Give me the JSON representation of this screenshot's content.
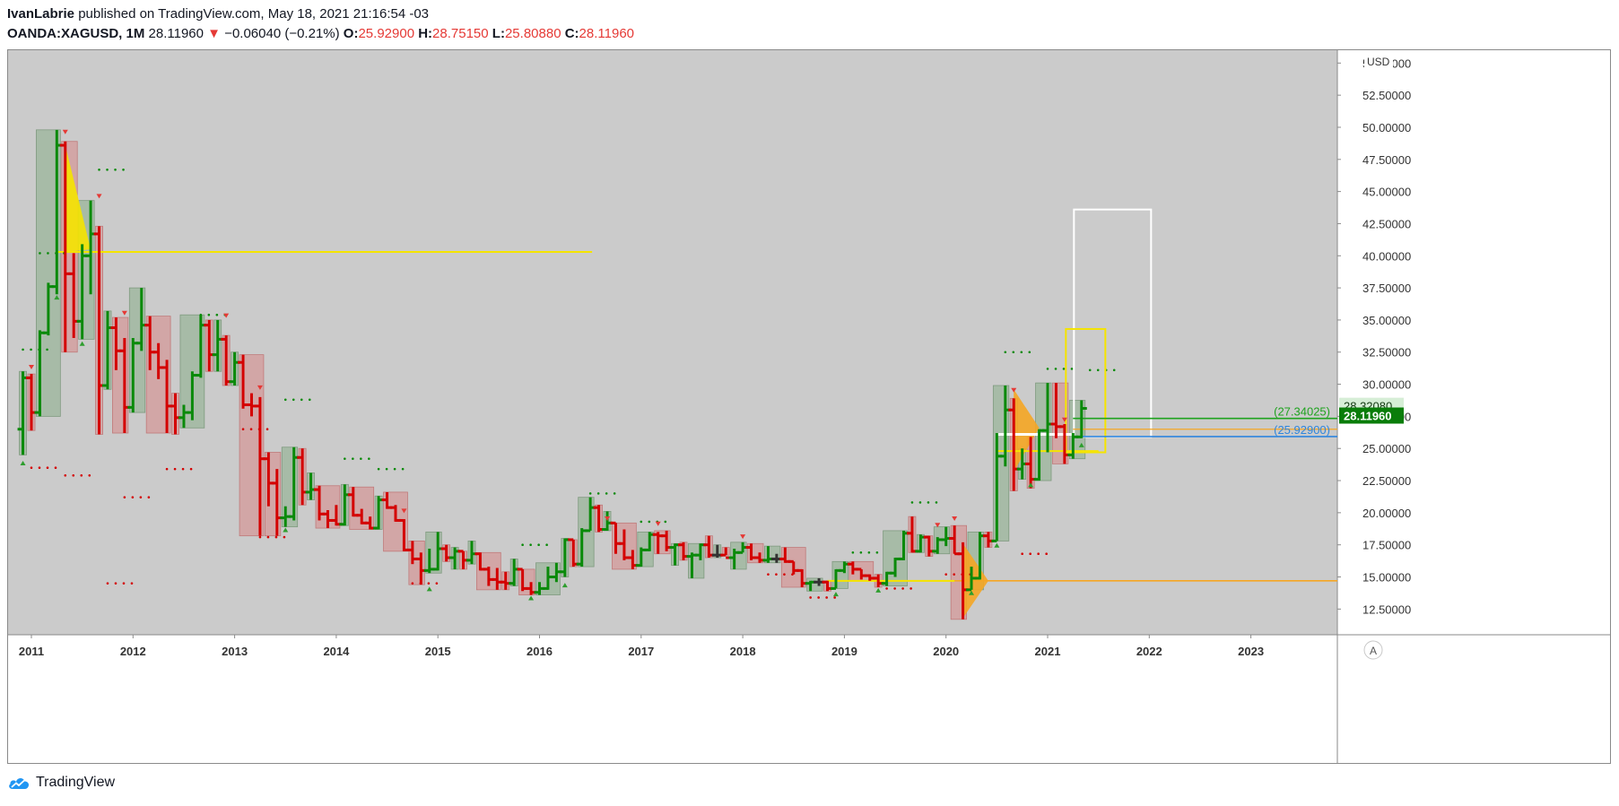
{
  "header": {
    "author": "IvanLabrie",
    "published_text": "published on TradingView.com, May 18, 2021 21:16:54 -03",
    "symbol": "OANDA:XAGUSD",
    "interval": "1M",
    "last": "28.11960",
    "arrow": "▼",
    "change": "−0.06040 (−0.21%)",
    "o_label": "O:",
    "o_value": "25.92900",
    "h_label": "H:",
    "h_value": "28.75150",
    "l_label": "L:",
    "l_value": "25.80880",
    "c_label": "C:",
    "c_value": "28.11960"
  },
  "footer": {
    "brand": "TradingView"
  },
  "colors": {
    "background": "#cbcbcb",
    "up": "#0a8a0a",
    "down": "#d40000",
    "neutral": "#333333",
    "up_box": "#9bb59b",
    "down_box": "#d49a9a",
    "yellow_line": "#f5e400",
    "orange_line": "#f5a623",
    "green_line": "#1fa31f",
    "blue_line": "#2e86de",
    "price_tag": "#0a7d0a"
  },
  "chart_data": {
    "type": "bar",
    "title": "",
    "currency": "USD",
    "auto_label": "A",
    "y_ticks": [
      "12.50000",
      "15.00000",
      "17.50000",
      "20.00000",
      "22.50000",
      "25.00000",
      "27.50000",
      "30.00000",
      "32.50000",
      "35.00000",
      "37.50000",
      "40.00000",
      "42.50000",
      "45.00000",
      "47.50000",
      "50.00000",
      "52.50000",
      "55.00000"
    ],
    "x_ticks": [
      "2011",
      "2012",
      "2013",
      "2014",
      "2015",
      "2016",
      "2017",
      "2018",
      "2019",
      "2020",
      "2021",
      "2022",
      "2023"
    ],
    "ylim": [
      10.5,
      56
    ],
    "price_labels": {
      "high_mark": "28.32080",
      "last": "28.11960"
    },
    "level_labels": {
      "green": "(27.34025)",
      "blue": "(25.92900)"
    },
    "levels": {
      "yellow_2011": 40.3,
      "yellow_2019": 14.7,
      "green": 27.34025,
      "blue": 25.929,
      "orange": 26.5
    },
    "ohlc": [
      {
        "t": "2010-12",
        "o": 26.5,
        "h": 31.0,
        "l": 24.5,
        "c": 30.5
      },
      {
        "t": "2011-01",
        "o": 30.5,
        "h": 30.8,
        "l": 26.4,
        "c": 27.8
      },
      {
        "t": "2011-02",
        "o": 27.8,
        "h": 34.2,
        "l": 27.5,
        "c": 34.0
      },
      {
        "t": "2011-03",
        "o": 34.0,
        "h": 37.9,
        "l": 33.8,
        "c": 37.6
      },
      {
        "t": "2011-04",
        "o": 37.6,
        "h": 49.8,
        "l": 37.0,
        "c": 48.6
      },
      {
        "t": "2011-05",
        "o": 48.6,
        "h": 48.9,
        "l": 32.5,
        "c": 38.6
      },
      {
        "t": "2011-06",
        "o": 38.6,
        "h": 40.2,
        "l": 33.6,
        "c": 34.9
      },
      {
        "t": "2011-07",
        "o": 34.9,
        "h": 40.9,
        "l": 33.5,
        "c": 40.0
      },
      {
        "t": "2011-08",
        "o": 40.0,
        "h": 44.3,
        "l": 37.0,
        "c": 41.7
      },
      {
        "t": "2011-09",
        "o": 41.7,
        "h": 42.3,
        "l": 26.1,
        "c": 29.9
      },
      {
        "t": "2011-10",
        "o": 29.9,
        "h": 35.7,
        "l": 29.6,
        "c": 34.4
      },
      {
        "t": "2011-11",
        "o": 34.4,
        "h": 35.2,
        "l": 31.1,
        "c": 32.6
      },
      {
        "t": "2011-12",
        "o": 32.6,
        "h": 33.6,
        "l": 26.2,
        "c": 28.2
      },
      {
        "t": "2012-01",
        "o": 28.2,
        "h": 33.6,
        "l": 27.8,
        "c": 33.2
      },
      {
        "t": "2012-02",
        "o": 33.2,
        "h": 37.5,
        "l": 32.6,
        "c": 34.6
      },
      {
        "t": "2012-03",
        "o": 34.6,
        "h": 35.3,
        "l": 31.1,
        "c": 32.5
      },
      {
        "t": "2012-04",
        "o": 32.5,
        "h": 33.2,
        "l": 30.4,
        "c": 31.3
      },
      {
        "t": "2012-05",
        "o": 31.3,
        "h": 31.9,
        "l": 26.2,
        "c": 28.3
      },
      {
        "t": "2012-06",
        "o": 28.3,
        "h": 29.3,
        "l": 26.1,
        "c": 27.4
      },
      {
        "t": "2012-07",
        "o": 27.4,
        "h": 28.4,
        "l": 26.6,
        "c": 27.8
      },
      {
        "t": "2012-08",
        "o": 27.8,
        "h": 31.0,
        "l": 27.2,
        "c": 30.7
      },
      {
        "t": "2012-09",
        "o": 30.7,
        "h": 35.4,
        "l": 30.5,
        "c": 34.6
      },
      {
        "t": "2012-10",
        "o": 34.6,
        "h": 35.0,
        "l": 31.0,
        "c": 32.3
      },
      {
        "t": "2012-11",
        "o": 32.3,
        "h": 35.0,
        "l": 31.0,
        "c": 33.5
      },
      {
        "t": "2012-12",
        "o": 33.5,
        "h": 33.8,
        "l": 29.9,
        "c": 30.2
      },
      {
        "t": "2013-01",
        "o": 30.2,
        "h": 32.5,
        "l": 29.9,
        "c": 31.7
      },
      {
        "t": "2013-02",
        "o": 31.7,
        "h": 32.3,
        "l": 28.1,
        "c": 28.4
      },
      {
        "t": "2013-03",
        "o": 28.4,
        "h": 29.3,
        "l": 27.5,
        "c": 28.3
      },
      {
        "t": "2013-04",
        "o": 28.3,
        "h": 29.0,
        "l": 18.2,
        "c": 24.2
      },
      {
        "t": "2013-05",
        "o": 24.2,
        "h": 24.7,
        "l": 20.5,
        "c": 22.3
      },
      {
        "t": "2013-06",
        "o": 22.3,
        "h": 23.4,
        "l": 18.2,
        "c": 19.6
      },
      {
        "t": "2013-07",
        "o": 19.6,
        "h": 20.5,
        "l": 18.9,
        "c": 19.7
      },
      {
        "t": "2013-08",
        "o": 19.7,
        "h": 25.1,
        "l": 19.4,
        "c": 24.3
      },
      {
        "t": "2013-09",
        "o": 24.3,
        "h": 25.0,
        "l": 20.6,
        "c": 21.6
      },
      {
        "t": "2013-10",
        "o": 21.6,
        "h": 23.1,
        "l": 21.0,
        "c": 21.8
      },
      {
        "t": "2013-11",
        "o": 21.8,
        "h": 22.1,
        "l": 19.4,
        "c": 19.9
      },
      {
        "t": "2013-12",
        "o": 19.9,
        "h": 20.2,
        "l": 18.8,
        "c": 19.4
      },
      {
        "t": "2014-01",
        "o": 19.4,
        "h": 20.6,
        "l": 19.0,
        "c": 19.1
      },
      {
        "t": "2014-02",
        "o": 19.1,
        "h": 22.2,
        "l": 19.0,
        "c": 21.4
      },
      {
        "t": "2014-03",
        "o": 21.4,
        "h": 22.0,
        "l": 19.7,
        "c": 19.8
      },
      {
        "t": "2014-04",
        "o": 19.8,
        "h": 20.3,
        "l": 19.1,
        "c": 19.2
      },
      {
        "t": "2014-05",
        "o": 19.2,
        "h": 19.7,
        "l": 18.7,
        "c": 18.8
      },
      {
        "t": "2014-06",
        "o": 18.8,
        "h": 21.3,
        "l": 18.7,
        "c": 21.0
      },
      {
        "t": "2014-07",
        "o": 21.0,
        "h": 21.6,
        "l": 20.3,
        "c": 20.4
      },
      {
        "t": "2014-08",
        "o": 20.4,
        "h": 20.6,
        "l": 19.3,
        "c": 19.4
      },
      {
        "t": "2014-09",
        "o": 19.4,
        "h": 19.5,
        "l": 17.0,
        "c": 17.1
      },
      {
        "t": "2014-10",
        "o": 17.1,
        "h": 17.8,
        "l": 16.0,
        "c": 16.4
      },
      {
        "t": "2014-11",
        "o": 16.4,
        "h": 16.9,
        "l": 14.4,
        "c": 15.5
      },
      {
        "t": "2014-12",
        "o": 15.5,
        "h": 17.2,
        "l": 15.3,
        "c": 15.6
      },
      {
        "t": "2015-01",
        "o": 15.6,
        "h": 18.5,
        "l": 15.5,
        "c": 17.2
      },
      {
        "t": "2015-02",
        "o": 17.2,
        "h": 17.5,
        "l": 16.2,
        "c": 16.5
      },
      {
        "t": "2015-03",
        "o": 16.5,
        "h": 17.3,
        "l": 15.6,
        "c": 17.0
      },
      {
        "t": "2015-04",
        "o": 17.0,
        "h": 17.0,
        "l": 15.6,
        "c": 16.3
      },
      {
        "t": "2015-05",
        "o": 16.3,
        "h": 17.8,
        "l": 16.0,
        "c": 16.8
      },
      {
        "t": "2015-06",
        "o": 16.8,
        "h": 16.9,
        "l": 15.5,
        "c": 15.6
      },
      {
        "t": "2015-07",
        "o": 15.6,
        "h": 15.8,
        "l": 14.3,
        "c": 14.8
      },
      {
        "t": "2015-08",
        "o": 14.8,
        "h": 15.7,
        "l": 14.0,
        "c": 14.6
      },
      {
        "t": "2015-09",
        "o": 14.6,
        "h": 15.4,
        "l": 14.0,
        "c": 14.5
      },
      {
        "t": "2015-10",
        "o": 14.5,
        "h": 16.4,
        "l": 14.3,
        "c": 15.6
      },
      {
        "t": "2015-11",
        "o": 15.6,
        "h": 15.6,
        "l": 13.9,
        "c": 14.1
      },
      {
        "t": "2015-12",
        "o": 14.1,
        "h": 14.6,
        "l": 13.6,
        "c": 13.8
      },
      {
        "t": "2016-01",
        "o": 13.8,
        "h": 14.6,
        "l": 13.6,
        "c": 14.1
      },
      {
        "t": "2016-02",
        "o": 14.1,
        "h": 15.8,
        "l": 14.0,
        "c": 15.0
      },
      {
        "t": "2016-03",
        "o": 15.0,
        "h": 16.1,
        "l": 14.6,
        "c": 15.4
      },
      {
        "t": "2016-04",
        "o": 15.4,
        "h": 18.0,
        "l": 15.0,
        "c": 17.9
      },
      {
        "t": "2016-05",
        "o": 17.9,
        "h": 17.9,
        "l": 15.8,
        "c": 16.0
      },
      {
        "t": "2016-06",
        "o": 16.0,
        "h": 18.8,
        "l": 15.8,
        "c": 18.6
      },
      {
        "t": "2016-07",
        "o": 18.6,
        "h": 21.2,
        "l": 18.6,
        "c": 20.4
      },
      {
        "t": "2016-08",
        "o": 20.4,
        "h": 20.6,
        "l": 18.5,
        "c": 18.7
      },
      {
        "t": "2016-09",
        "o": 18.7,
        "h": 20.1,
        "l": 18.6,
        "c": 19.2
      },
      {
        "t": "2016-10",
        "o": 19.2,
        "h": 19.2,
        "l": 16.8,
        "c": 17.6
      },
      {
        "t": "2016-11",
        "o": 17.6,
        "h": 18.7,
        "l": 16.3,
        "c": 16.5
      },
      {
        "t": "2016-12",
        "o": 16.5,
        "h": 17.1,
        "l": 15.6,
        "c": 15.9
      },
      {
        "t": "2017-01",
        "o": 15.9,
        "h": 17.3,
        "l": 15.8,
        "c": 17.1
      },
      {
        "t": "2017-02",
        "o": 17.1,
        "h": 18.5,
        "l": 17.0,
        "c": 18.3
      },
      {
        "t": "2017-03",
        "o": 18.3,
        "h": 18.5,
        "l": 16.8,
        "c": 18.2
      },
      {
        "t": "2017-04",
        "o": 18.2,
        "h": 18.6,
        "l": 17.0,
        "c": 17.3
      },
      {
        "t": "2017-05",
        "o": 17.3,
        "h": 17.6,
        "l": 15.9,
        "c": 17.5
      },
      {
        "t": "2017-06",
        "o": 17.5,
        "h": 17.7,
        "l": 16.3,
        "c": 16.6
      },
      {
        "t": "2017-07",
        "o": 16.6,
        "h": 16.9,
        "l": 14.9,
        "c": 16.7
      },
      {
        "t": "2017-08",
        "o": 16.7,
        "h": 17.6,
        "l": 16.3,
        "c": 17.5
      },
      {
        "t": "2017-09",
        "o": 17.5,
        "h": 18.2,
        "l": 16.5,
        "c": 16.7
      },
      {
        "t": "2017-10",
        "o": 16.7,
        "h": 17.5,
        "l": 16.5,
        "c": 16.7
      },
      {
        "t": "2017-11",
        "o": 16.7,
        "h": 17.3,
        "l": 16.7,
        "c": 16.5
      },
      {
        "t": "2017-12",
        "o": 16.5,
        "h": 17.2,
        "l": 15.6,
        "c": 16.9
      },
      {
        "t": "2018-01",
        "o": 16.9,
        "h": 17.7,
        "l": 16.9,
        "c": 17.3
      },
      {
        "t": "2018-02",
        "o": 17.3,
        "h": 17.6,
        "l": 16.3,
        "c": 16.5
      },
      {
        "t": "2018-03",
        "o": 16.5,
        "h": 16.9,
        "l": 16.1,
        "c": 16.3
      },
      {
        "t": "2018-04",
        "o": 16.3,
        "h": 17.4,
        "l": 16.1,
        "c": 16.4
      },
      {
        "t": "2018-05",
        "o": 16.4,
        "h": 16.8,
        "l": 16.1,
        "c": 16.4
      },
      {
        "t": "2018-06",
        "o": 16.4,
        "h": 17.3,
        "l": 16.1,
        "c": 16.2
      },
      {
        "t": "2018-07",
        "o": 16.2,
        "h": 16.2,
        "l": 15.2,
        "c": 15.5
      },
      {
        "t": "2018-08",
        "o": 15.5,
        "h": 15.6,
        "l": 14.2,
        "c": 14.5
      },
      {
        "t": "2018-09",
        "o": 14.5,
        "h": 14.7,
        "l": 13.9,
        "c": 14.6
      },
      {
        "t": "2018-10",
        "o": 14.6,
        "h": 14.9,
        "l": 14.3,
        "c": 14.6
      },
      {
        "t": "2018-11",
        "o": 14.6,
        "h": 14.7,
        "l": 13.9,
        "c": 14.1
      },
      {
        "t": "2018-12",
        "o": 14.1,
        "h": 15.6,
        "l": 14.1,
        "c": 15.5
      },
      {
        "t": "2019-01",
        "o": 15.5,
        "h": 16.2,
        "l": 15.3,
        "c": 16.0
      },
      {
        "t": "2019-02",
        "o": 16.0,
        "h": 16.2,
        "l": 15.2,
        "c": 15.6
      },
      {
        "t": "2019-03",
        "o": 15.6,
        "h": 15.6,
        "l": 14.8,
        "c": 15.1
      },
      {
        "t": "2019-04",
        "o": 15.1,
        "h": 15.2,
        "l": 14.7,
        "c": 14.9
      },
      {
        "t": "2019-05",
        "o": 14.9,
        "h": 15.2,
        "l": 14.2,
        "c": 14.5
      },
      {
        "t": "2019-06",
        "o": 14.5,
        "h": 15.4,
        "l": 14.3,
        "c": 15.3
      },
      {
        "t": "2019-07",
        "o": 15.3,
        "h": 16.5,
        "l": 15.0,
        "c": 16.4
      },
      {
        "t": "2019-08",
        "o": 16.4,
        "h": 18.6,
        "l": 16.3,
        "c": 18.4
      },
      {
        "t": "2019-09",
        "o": 18.4,
        "h": 19.7,
        "l": 16.9,
        "c": 17.0
      },
      {
        "t": "2019-10",
        "o": 17.0,
        "h": 18.3,
        "l": 16.9,
        "c": 18.1
      },
      {
        "t": "2019-11",
        "o": 18.1,
        "h": 18.2,
        "l": 16.6,
        "c": 17.0
      },
      {
        "t": "2019-12",
        "o": 17.0,
        "h": 18.1,
        "l": 16.8,
        "c": 17.9
      },
      {
        "t": "2020-01",
        "o": 17.9,
        "h": 18.9,
        "l": 17.4,
        "c": 18.0
      },
      {
        "t": "2020-02",
        "o": 18.0,
        "h": 19.0,
        "l": 16.8,
        "c": 16.8
      },
      {
        "t": "2020-03",
        "o": 16.8,
        "h": 17.7,
        "l": 11.7,
        "c": 14.0
      },
      {
        "t": "2020-04",
        "o": 14.0,
        "h": 15.8,
        "l": 14.0,
        "c": 14.9
      },
      {
        "t": "2020-05",
        "o": 14.9,
        "h": 18.5,
        "l": 14.8,
        "c": 18.2
      },
      {
        "t": "2020-06",
        "o": 18.2,
        "h": 18.5,
        "l": 17.3,
        "c": 17.8
      },
      {
        "t": "2020-07",
        "o": 17.8,
        "h": 26.2,
        "l": 17.8,
        "c": 24.4
      },
      {
        "t": "2020-08",
        "o": 24.4,
        "h": 29.9,
        "l": 23.6,
        "c": 28.0
      },
      {
        "t": "2020-09",
        "o": 28.0,
        "h": 28.9,
        "l": 21.7,
        "c": 23.4
      },
      {
        "t": "2020-10",
        "o": 23.4,
        "h": 25.0,
        "l": 22.6,
        "c": 23.8
      },
      {
        "t": "2020-11",
        "o": 23.8,
        "h": 25.9,
        "l": 21.9,
        "c": 22.6
      },
      {
        "t": "2020-12",
        "o": 22.6,
        "h": 26.5,
        "l": 22.5,
        "c": 26.4
      },
      {
        "t": "2021-01",
        "o": 26.4,
        "h": 30.1,
        "l": 24.7,
        "c": 26.9
      },
      {
        "t": "2021-02",
        "o": 26.9,
        "h": 30.1,
        "l": 25.8,
        "c": 26.7
      },
      {
        "t": "2021-03",
        "o": 26.7,
        "h": 26.9,
        "l": 23.8,
        "c": 24.5
      },
      {
        "t": "2021-04",
        "o": 24.5,
        "h": 26.2,
        "l": 24.2,
        "c": 25.9
      },
      {
        "t": "2021-05",
        "o": 25.9,
        "h": 28.75,
        "l": 25.8,
        "c": 28.12
      }
    ]
  }
}
